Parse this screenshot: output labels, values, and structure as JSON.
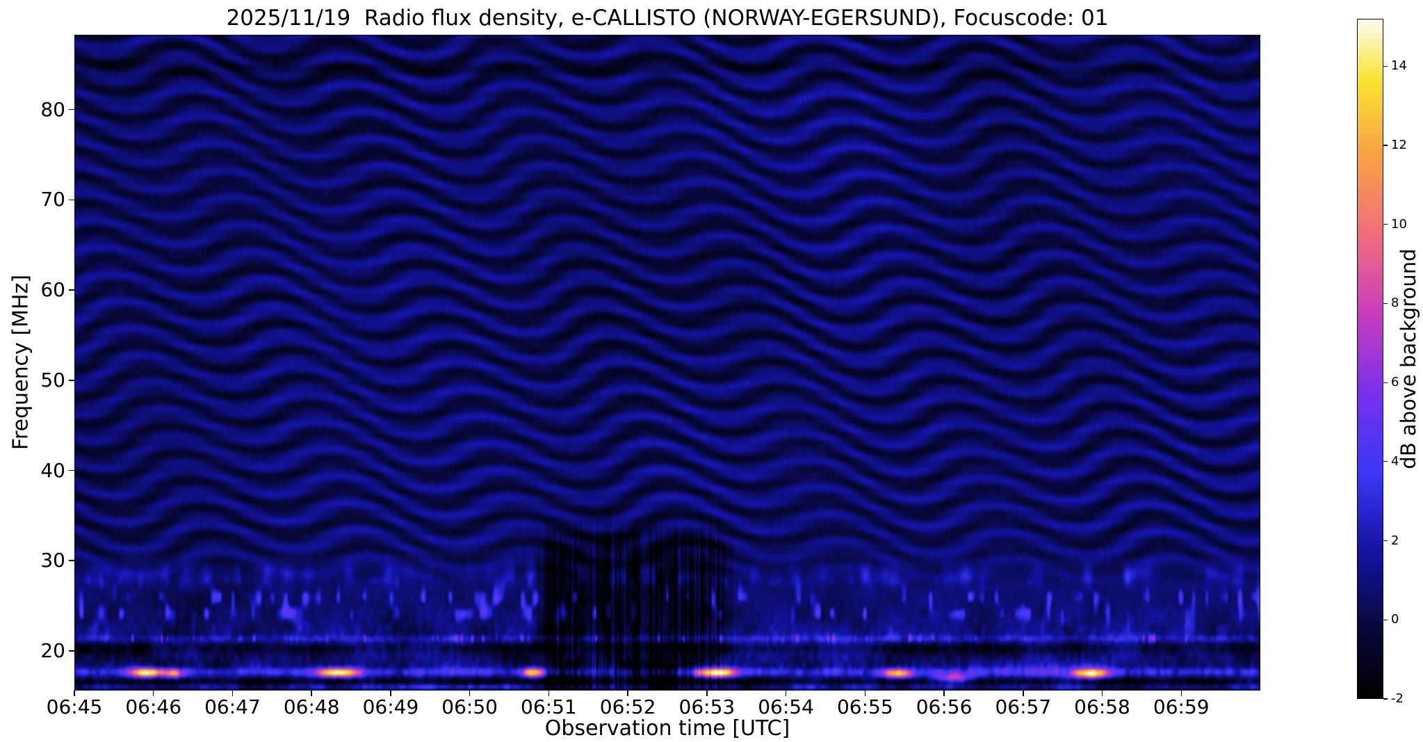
{
  "title": "2025/11/19  Radio flux density, e-CALLISTO (NORWAY-EGERSUND), Focuscode: 01",
  "chart_data": {
    "type": "heatmap",
    "title": "2025/11/19  Radio flux density, e-CALLISTO (NORWAY-EGERSUND), Focuscode: 01",
    "xlabel": "Observation time [UTC]",
    "ylabel": "Frequency [MHz]",
    "x_ticks": {
      "labels": [
        "06:45",
        "06:46",
        "06:47",
        "06:48",
        "06:49",
        "06:50",
        "06:51",
        "06:52",
        "06:53",
        "06:54",
        "06:55",
        "06:56",
        "06:57",
        "06:58",
        "06:59"
      ],
      "seconds": [
        0,
        60,
        120,
        180,
        240,
        300,
        360,
        420,
        480,
        540,
        600,
        660,
        720,
        780,
        840
      ]
    },
    "x_range_seconds": [
      0,
      900
    ],
    "y_ticks": {
      "labels": [
        "20",
        "30",
        "40",
        "50",
        "60",
        "70",
        "80"
      ],
      "mhz": [
        20,
        30,
        40,
        50,
        60,
        70,
        80
      ]
    },
    "y_range_mhz": [
      15.6,
      88.3
    ],
    "grid": false,
    "legend": false,
    "colorbar": {
      "label": "dB above background",
      "ticks": {
        "labels": [
          "-2",
          "0",
          "2",
          "4",
          "6",
          "8",
          "10",
          "12",
          "14"
        ],
        "values": [
          -2,
          0,
          2,
          4,
          6,
          8,
          10,
          12,
          14
        ]
      },
      "range": [
        -2,
        15.2
      ],
      "colormap_stops": [
        [
          0.0,
          0,
          0,
          0
        ],
        [
          0.1,
          8,
          8,
          58
        ],
        [
          0.22,
          20,
          20,
          165
        ],
        [
          0.33,
          58,
          55,
          245
        ],
        [
          0.45,
          122,
          48,
          235
        ],
        [
          0.57,
          202,
          62,
          188
        ],
        [
          0.68,
          240,
          108,
          128
        ],
        [
          0.8,
          248,
          162,
          70
        ],
        [
          0.91,
          250,
          226,
          48
        ],
        [
          1.0,
          253,
          253,
          238
        ]
      ]
    },
    "features": {
      "background_level_db": 0.5,
      "description": "Dark blue background with wavy diagonal interference fringes between ~30 and 88 MHz; noisy RFI activity below ~30 MHz; bright emission lines near 17.6 and 21.3 MHz; dark vertical striations between 06:50:45 and 06:53:25 below ~35 MHz; faint dark horizontal band near 85 MHz.",
      "rfi_band_mhz": [
        16,
        30.5
      ],
      "bright_lines_mhz": [
        17.6,
        21.3
      ],
      "dark_lines_mhz": [
        16.5,
        20.2
      ],
      "striation_interval_s": [
        345,
        505
      ],
      "bursts": [
        {
          "time_utc": "06:45:55",
          "t_s": 55,
          "freq_mhz": 17.5,
          "width_s": 9,
          "peak_db": 13
        },
        {
          "time_utc": "06:46:15",
          "t_s": 75,
          "freq_mhz": 17.4,
          "width_s": 5,
          "peak_db": 8
        },
        {
          "time_utc": "06:48:20",
          "t_s": 200,
          "freq_mhz": 17.5,
          "width_s": 11,
          "peak_db": 13
        },
        {
          "time_utc": "06:50:48",
          "t_s": 348,
          "freq_mhz": 17.5,
          "width_s": 6,
          "peak_db": 11
        },
        {
          "time_utc": "06:53:07",
          "t_s": 487,
          "freq_mhz": 17.5,
          "width_s": 11,
          "peak_db": 13.5
        },
        {
          "time_utc": "06:55:25",
          "t_s": 625,
          "freq_mhz": 17.4,
          "width_s": 8,
          "peak_db": 11
        },
        {
          "time_utc": "06:56:08",
          "t_s": 668,
          "freq_mhz": 16.9,
          "width_s": 10,
          "peak_db": 7
        },
        {
          "time_utc": "06:57:52",
          "t_s": 772,
          "freq_mhz": 17.4,
          "width_s": 9,
          "peak_db": 12
        }
      ]
    }
  }
}
